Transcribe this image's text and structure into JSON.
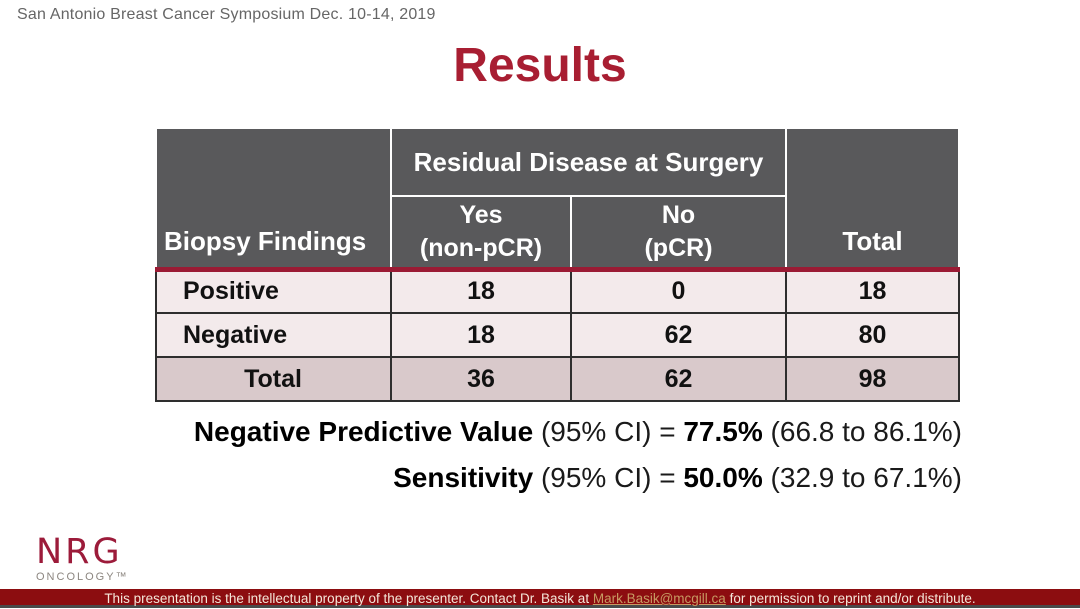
{
  "colors": {
    "title_color": "#A81E32",
    "header_bg": "#59595B",
    "row_bg": "#F3EAEB",
    "total_row_bg": "#D9C9CB",
    "accent_line": "#9B1B34",
    "footer_bg": "#8C0D10",
    "footer_link": "#C79A62",
    "logo_color": "#9C1B3A"
  },
  "header": {
    "conference": "San Antonio Breast Cancer Symposium Dec. 10-14, 2019"
  },
  "title": "Results",
  "table": {
    "row_header": "Biopsy Findings",
    "group_header": "Residual Disease at Surgery",
    "sub_headers": {
      "yes": "Yes\n(non-pCR)",
      "no": "No\n(pCR)"
    },
    "total_header": "Total",
    "rows": [
      {
        "label": "Positive",
        "yes": 18,
        "no": 0,
        "total": 18
      },
      {
        "label": "Negative",
        "yes": 18,
        "no": 62,
        "total": 80
      },
      {
        "label": "Total",
        "yes": 36,
        "no": 62,
        "total": 98
      }
    ]
  },
  "stats": {
    "npv": {
      "label": "Negative Predictive Value",
      "mid": " (95% CI) = ",
      "value": "77.5%",
      "ci": " (66.8 to 86.1%)"
    },
    "sensitivity": {
      "label": "Sensitivity",
      "mid": " (95% CI) = ",
      "value": "50.0%",
      "ci": " (32.9 to 67.1%)"
    }
  },
  "logo": {
    "name": "NRG",
    "subtitle": "ONCOLOGY™"
  },
  "footer": {
    "before_link": "This presentation is the intellectual property of the presenter. Contact Dr. Basik at ",
    "link": "Mark.Basik@mcgill.ca",
    "after_link": " for permission to reprint and/or distribute."
  }
}
